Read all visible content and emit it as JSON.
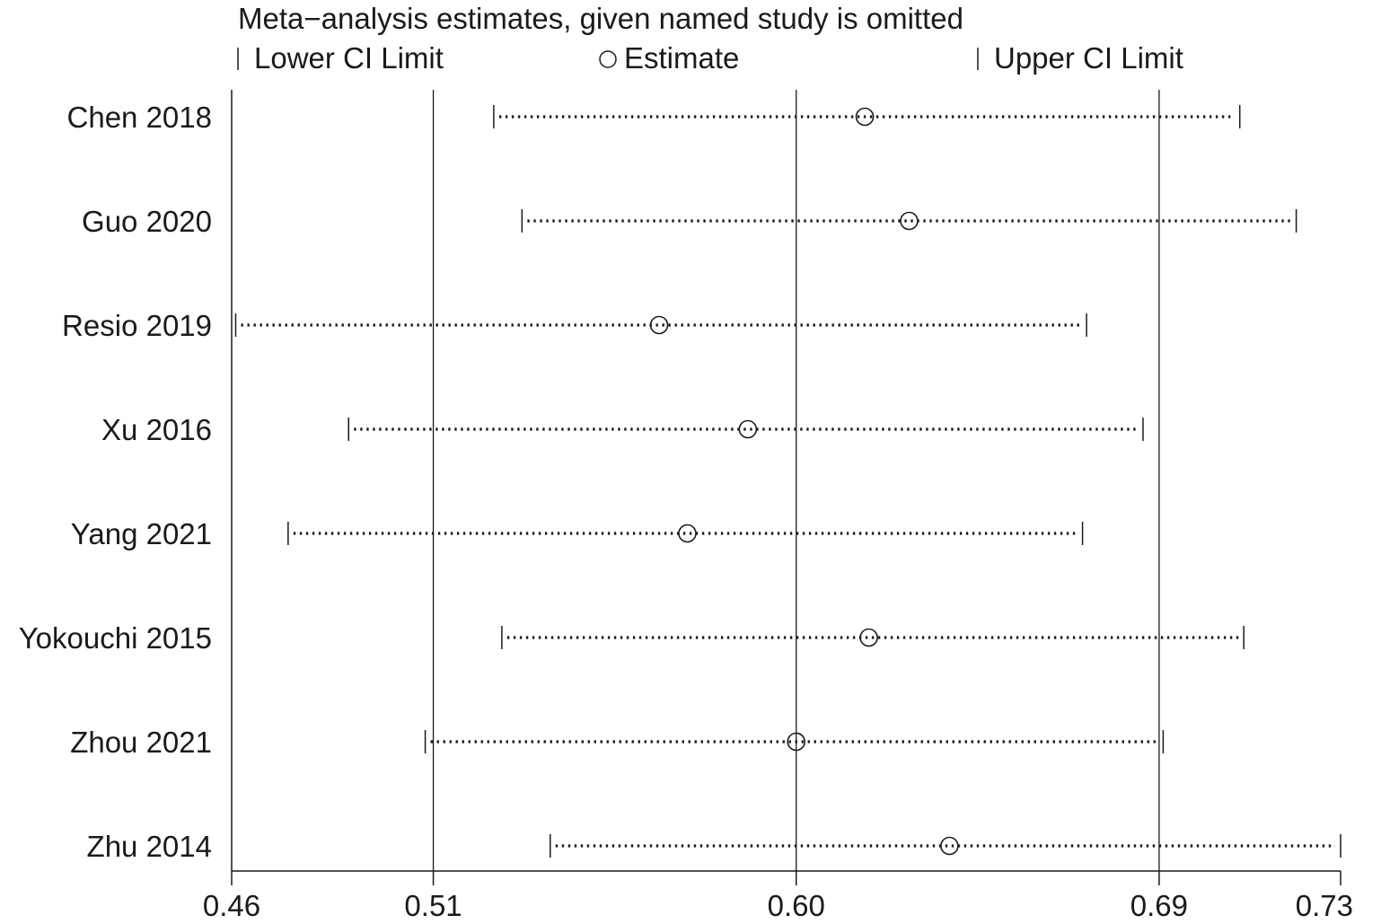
{
  "chart_data": {
    "type": "scatter",
    "title": "Meta−analysis estimates, given named study is omitted",
    "legend": {
      "lower": "Lower CI Limit",
      "estimate": "Estimate",
      "upper": "Upper CI Limit"
    },
    "xlim": [
      0.46,
      0.735
    ],
    "xticks": [
      {
        "value": 0.46,
        "label": "0.46"
      },
      {
        "value": 0.51,
        "label": "0.51"
      },
      {
        "value": 0.6,
        "label": "0.60"
      },
      {
        "value": 0.69,
        "label": "0.69"
      },
      {
        "value": 0.73,
        "label": "0.73"
      }
    ],
    "reference_lines": [
      0.51,
      0.6,
      0.69
    ],
    "studies": [
      {
        "name": "Chen 2018",
        "lower": 0.525,
        "estimate": 0.617,
        "upper": 0.71
      },
      {
        "name": "Guo 2020",
        "lower": 0.532,
        "estimate": 0.628,
        "upper": 0.724
      },
      {
        "name": "Resio 2019",
        "lower": 0.461,
        "estimate": 0.566,
        "upper": 0.672
      },
      {
        "name": "Xu 2016",
        "lower": 0.489,
        "estimate": 0.588,
        "upper": 0.686
      },
      {
        "name": "Yang 2021",
        "lower": 0.474,
        "estimate": 0.573,
        "upper": 0.671
      },
      {
        "name": "Yokouchi 2015",
        "lower": 0.527,
        "estimate": 0.618,
        "upper": 0.711
      },
      {
        "name": "Zhou 2021",
        "lower": 0.508,
        "estimate": 0.6,
        "upper": 0.691
      },
      {
        "name": "Zhu 2014",
        "lower": 0.539,
        "estimate": 0.638,
        "upper": 0.735
      }
    ]
  }
}
